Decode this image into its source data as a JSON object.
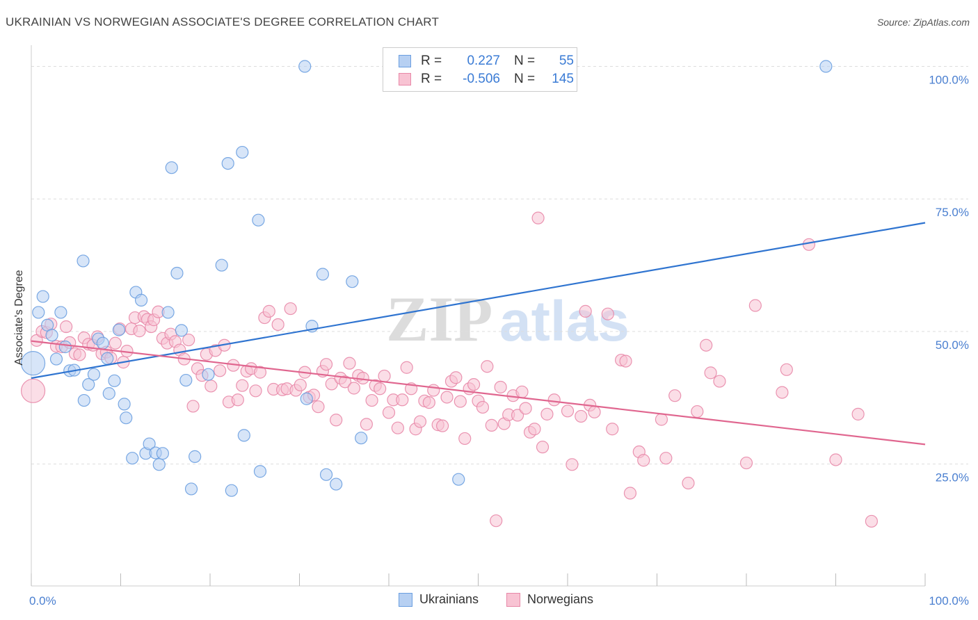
{
  "title": "UKRAINIAN VS NORWEGIAN ASSOCIATE'S DEGREE CORRELATION CHART",
  "source": "Source: ZipAtlas.com",
  "watermark": {
    "zip": "ZIP",
    "atlas": "atlas"
  },
  "legend": {
    "rows": [
      {
        "r_label": "R =",
        "r_value": "0.227",
        "n_label": "N =",
        "n_value": "55"
      },
      {
        "r_label": "R =",
        "r_value": "-0.506",
        "n_label": "N =",
        "n_value": "145"
      }
    ]
  },
  "bottom_legend": [
    "Ukrainians",
    "Norwegians"
  ],
  "colors": {
    "ukrainians_fill": "#b7d0f2",
    "ukrainians_stroke": "#6a9ee0",
    "ukrainians_line": "#2f74d0",
    "norwegians_fill": "#f8c3d3",
    "norwegians_stroke": "#e888a8",
    "norwegians_line": "#e0668f",
    "axis_text": "#4a7fd0",
    "grid": "#dddddd"
  },
  "chart_data": {
    "type": "scatter",
    "title": "UKRAINIAN VS NORWEGIAN ASSOCIATE'S DEGREE CORRELATION CHART",
    "xlabel": "",
    "ylabel": "Associate's Degree",
    "xlim": [
      0,
      100
    ],
    "ylim": [
      2,
      104
    ],
    "x_tick_labels": [
      "0.0%",
      "100.0%"
    ],
    "y_ticks": [
      25,
      50,
      75,
      100
    ],
    "y_tick_labels": [
      "25.0%",
      "50.0%",
      "75.0%",
      "100.0%"
    ],
    "grid": "horizontal dashed",
    "legend_position": "top-center",
    "series": [
      {
        "name": "Ukrainians",
        "R": 0.227,
        "N": 55,
        "trend": {
          "x": [
            0,
            100
          ],
          "y": [
            41.2,
            70.5
          ]
        },
        "points": [
          [
            0.2,
            44.0
          ],
          [
            0.8,
            53.6
          ],
          [
            1.3,
            56.6
          ],
          [
            1.8,
            51.2
          ],
          [
            2.3,
            49.3
          ],
          [
            2.8,
            44.8
          ],
          [
            3.3,
            53.6
          ],
          [
            3.8,
            47.1
          ],
          [
            4.3,
            42.6
          ],
          [
            4.8,
            42.7
          ],
          [
            5.8,
            63.3
          ],
          [
            5.9,
            37.0
          ],
          [
            6.4,
            40.0
          ],
          [
            7.0,
            41.9
          ],
          [
            7.5,
            48.6
          ],
          [
            8.0,
            47.8
          ],
          [
            8.5,
            44.9
          ],
          [
            8.7,
            38.3
          ],
          [
            9.3,
            40.7
          ],
          [
            9.8,
            50.3
          ],
          [
            10.4,
            36.3
          ],
          [
            10.6,
            33.7
          ],
          [
            11.3,
            26.1
          ],
          [
            11.7,
            57.4
          ],
          [
            12.3,
            55.9
          ],
          [
            12.8,
            27.0
          ],
          [
            13.2,
            28.8
          ],
          [
            13.9,
            27.1
          ],
          [
            14.3,
            24.9
          ],
          [
            14.7,
            27.0
          ],
          [
            15.3,
            53.6
          ],
          [
            15.7,
            80.9
          ],
          [
            16.3,
            61.0
          ],
          [
            16.8,
            50.2
          ],
          [
            17.3,
            40.8
          ],
          [
            17.9,
            20.3
          ],
          [
            18.3,
            26.4
          ],
          [
            19.8,
            41.9
          ],
          [
            21.3,
            62.5
          ],
          [
            22.0,
            81.7
          ],
          [
            22.4,
            20.0
          ],
          [
            23.6,
            83.8
          ],
          [
            23.8,
            30.4
          ],
          [
            25.4,
            71.0
          ],
          [
            25.6,
            23.6
          ],
          [
            30.6,
            100.0
          ],
          [
            30.8,
            37.3
          ],
          [
            31.4,
            51.0
          ],
          [
            32.6,
            60.8
          ],
          [
            33.0,
            23.0
          ],
          [
            34.1,
            21.2
          ],
          [
            35.9,
            59.4
          ],
          [
            36.9,
            29.9
          ],
          [
            47.8,
            22.1
          ],
          [
            88.9,
            100.0
          ]
        ]
      },
      {
        "name": "Norwegians",
        "R": -0.506,
        "N": 145,
        "trend": {
          "x": [
            0,
            100
          ],
          "y": [
            48.2,
            28.7
          ]
        },
        "points": [
          [
            0.2,
            38.8
          ],
          [
            0.6,
            48.3
          ],
          [
            1.2,
            50.0
          ],
          [
            1.7,
            49.8
          ],
          [
            2.2,
            51.4
          ],
          [
            2.8,
            47.2
          ],
          [
            3.4,
            47.1
          ],
          [
            3.9,
            50.9
          ],
          [
            4.3,
            47.9
          ],
          [
            4.9,
            45.8
          ],
          [
            5.4,
            45.6
          ],
          [
            5.9,
            48.8
          ],
          [
            6.4,
            47.6
          ],
          [
            6.9,
            47.4
          ],
          [
            7.4,
            49.0
          ],
          [
            7.9,
            45.8
          ],
          [
            8.4,
            46.1
          ],
          [
            8.9,
            45.0
          ],
          [
            9.4,
            47.8
          ],
          [
            9.9,
            50.5
          ],
          [
            10.3,
            44.2
          ],
          [
            10.7,
            46.3
          ],
          [
            11.2,
            50.5
          ],
          [
            11.6,
            52.6
          ],
          [
            12.1,
            50.1
          ],
          [
            12.6,
            52.8
          ],
          [
            13.0,
            52.3
          ],
          [
            13.4,
            50.9
          ],
          [
            13.7,
            52.2
          ],
          [
            14.2,
            53.7
          ],
          [
            14.7,
            48.7
          ],
          [
            15.2,
            47.8
          ],
          [
            15.6,
            49.5
          ],
          [
            16.1,
            48.1
          ],
          [
            16.6,
            46.5
          ],
          [
            17.1,
            44.8
          ],
          [
            17.6,
            48.4
          ],
          [
            18.1,
            35.9
          ],
          [
            18.6,
            43.0
          ],
          [
            19.1,
            41.7
          ],
          [
            19.6,
            45.7
          ],
          [
            20.1,
            39.7
          ],
          [
            20.6,
            46.4
          ],
          [
            21.1,
            42.6
          ],
          [
            21.6,
            47.4
          ],
          [
            22.1,
            36.7
          ],
          [
            22.6,
            43.6
          ],
          [
            23.1,
            37.1
          ],
          [
            23.6,
            39.8
          ],
          [
            24.1,
            42.5
          ],
          [
            24.6,
            43.0
          ],
          [
            25.1,
            38.8
          ],
          [
            25.6,
            42.3
          ],
          [
            26.1,
            52.6
          ],
          [
            26.6,
            53.8
          ],
          [
            27.1,
            39.1
          ],
          [
            27.6,
            51.3
          ],
          [
            28.1,
            39.0
          ],
          [
            28.6,
            39.2
          ],
          [
            29.0,
            54.3
          ],
          [
            29.6,
            38.9
          ],
          [
            30.1,
            39.9
          ],
          [
            30.6,
            42.3
          ],
          [
            31.1,
            37.6
          ],
          [
            31.6,
            38.0
          ],
          [
            32.1,
            35.8
          ],
          [
            32.6,
            42.5
          ],
          [
            33.0,
            43.8
          ],
          [
            33.6,
            40.1
          ],
          [
            34.1,
            33.3
          ],
          [
            34.6,
            41.2
          ],
          [
            35.1,
            40.5
          ],
          [
            35.6,
            44.0
          ],
          [
            36.1,
            39.3
          ],
          [
            36.6,
            41.7
          ],
          [
            37.1,
            41.2
          ],
          [
            37.5,
            32.5
          ],
          [
            38.1,
            37.0
          ],
          [
            38.5,
            39.8
          ],
          [
            39.0,
            39.2
          ],
          [
            39.5,
            41.6
          ],
          [
            40.0,
            34.7
          ],
          [
            40.5,
            37.1
          ],
          [
            41.0,
            31.8
          ],
          [
            41.5,
            37.1
          ],
          [
            42.0,
            43.2
          ],
          [
            42.5,
            39.2
          ],
          [
            43.0,
            31.6
          ],
          [
            43.5,
            33.0
          ],
          [
            44.0,
            36.9
          ],
          [
            44.5,
            36.6
          ],
          [
            45.0,
            38.9
          ],
          [
            45.5,
            32.4
          ],
          [
            46.0,
            32.2
          ],
          [
            46.5,
            37.6
          ],
          [
            47.0,
            40.6
          ],
          [
            47.5,
            41.3
          ],
          [
            48.0,
            36.8
          ],
          [
            48.5,
            29.8
          ],
          [
            49.0,
            39.2
          ],
          [
            49.5,
            40.0
          ],
          [
            50.0,
            36.9
          ],
          [
            50.5,
            35.7
          ],
          [
            51.0,
            43.4
          ],
          [
            51.5,
            32.3
          ],
          [
            52.0,
            14.3
          ],
          [
            52.5,
            39.5
          ],
          [
            52.9,
            32.6
          ],
          [
            53.4,
            34.3
          ],
          [
            53.9,
            37.9
          ],
          [
            54.4,
            34.2
          ],
          [
            54.9,
            38.6
          ],
          [
            55.3,
            35.5
          ],
          [
            55.8,
            31.0
          ],
          [
            56.3,
            31.6
          ],
          [
            56.7,
            71.4
          ],
          [
            57.2,
            28.2
          ],
          [
            57.7,
            34.4
          ],
          [
            58.5,
            37.1
          ],
          [
            60.0,
            35.0
          ],
          [
            60.5,
            24.9
          ],
          [
            61.5,
            34.0
          ],
          [
            62.0,
            53.8
          ],
          [
            62.5,
            36.1
          ],
          [
            63.0,
            34.8
          ],
          [
            64.5,
            53.3
          ],
          [
            65.0,
            31.6
          ],
          [
            66.0,
            44.6
          ],
          [
            66.5,
            44.4
          ],
          [
            67.0,
            19.5
          ],
          [
            68.0,
            27.3
          ],
          [
            68.5,
            25.7
          ],
          [
            70.5,
            33.4
          ],
          [
            71.0,
            26.1
          ],
          [
            72.0,
            37.9
          ],
          [
            73.5,
            21.4
          ],
          [
            74.5,
            34.9
          ],
          [
            75.5,
            47.4
          ],
          [
            76.0,
            42.2
          ],
          [
            77.0,
            40.6
          ],
          [
            80.0,
            25.2
          ],
          [
            81.0,
            54.9
          ],
          [
            84.0,
            38.5
          ],
          [
            84.5,
            42.8
          ],
          [
            87.0,
            66.4
          ],
          [
            90.0,
            25.8
          ],
          [
            92.5,
            34.4
          ],
          [
            94.0,
            14.2
          ]
        ]
      }
    ],
    "large_points": [
      {
        "series": "Ukrainians",
        "x": 0.2,
        "y": 44.0
      },
      {
        "series": "Norwegians",
        "x": 0.2,
        "y": 38.8
      }
    ]
  }
}
